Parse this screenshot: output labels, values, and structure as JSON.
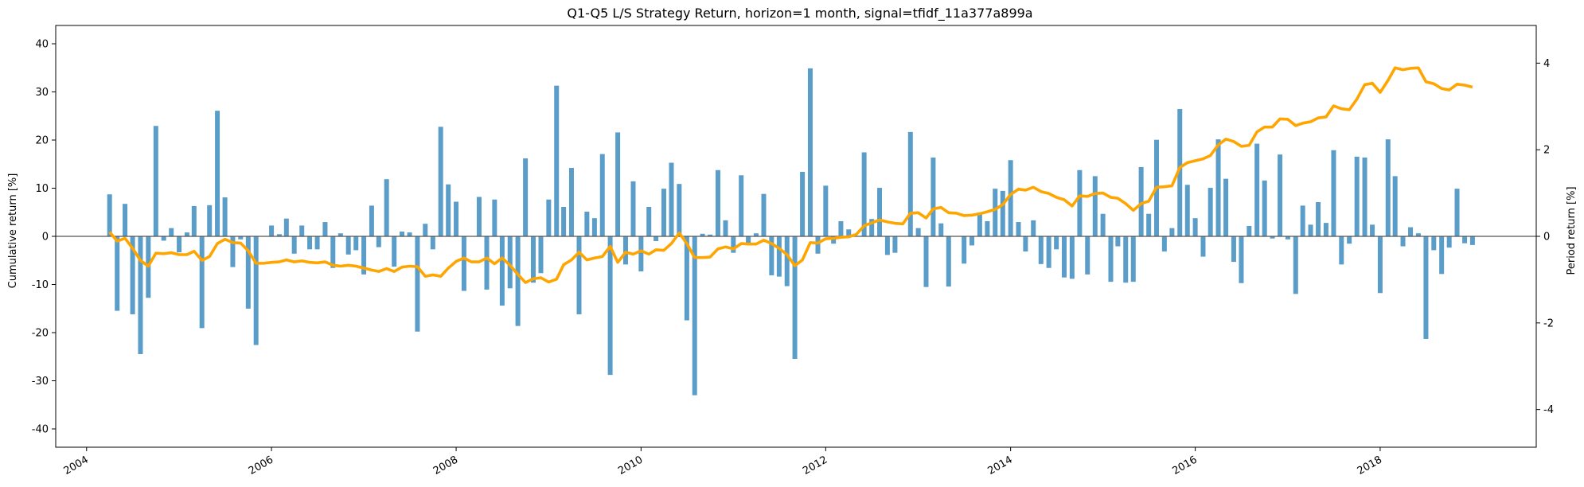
{
  "chart_data": {
    "type": "bar",
    "title": "Q1-Q5 L/S Strategy Return, horizon=1 month, signal=tfidf_11a377a899a",
    "ylabel_left": "Cumulative return [%]",
    "ylabel_right": "Period return [%]",
    "xlim": [
      "2003-09-01",
      "2019-09-10"
    ],
    "ylim_left": [
      -43.8,
      43.8
    ],
    "ylim_right": [
      -4.87,
      4.87
    ],
    "x_ticks": [
      "2004",
      "2006",
      "2008",
      "2010",
      "2012",
      "2014",
      "2016",
      "2018"
    ],
    "yticks_left": [
      -40,
      -30,
      -20,
      -10,
      0,
      10,
      20,
      30,
      40
    ],
    "yticks_right": [
      -4,
      -2,
      0,
      2,
      4
    ],
    "zero_line": true,
    "grid": false,
    "colors": {
      "bars": "#5b9dc9",
      "line": "#ffa500",
      "zero": "#555555"
    },
    "series": [
      {
        "type": "bar",
        "axis": "right",
        "start": "2004-04",
        "frequency": "monthly",
        "values": [
          0.97,
          -1.72,
          0.75,
          -1.8,
          -2.72,
          -1.42,
          2.55,
          -0.1,
          0.19,
          -0.37,
          0.09,
          0.7,
          -2.12,
          0.72,
          2.9,
          0.9,
          -0.71,
          -0.07,
          -1.67,
          -2.51,
          0.0,
          0.25,
          0.05,
          0.41,
          -0.4,
          0.25,
          -0.3,
          -0.3,
          0.33,
          -0.73,
          0.07,
          -0.42,
          -0.32,
          -0.88,
          0.71,
          -0.25,
          1.32,
          -0.7,
          0.11,
          0.09,
          -2.2,
          0.29,
          -0.3,
          2.53,
          1.2,
          0.8,
          -1.26,
          0.0,
          0.91,
          -1.23,
          0.85,
          -1.6,
          -1.2,
          -2.07,
          1.8,
          -1.07,
          -0.85,
          0.85,
          3.48,
          0.68,
          1.58,
          -1.8,
          0.57,
          0.42,
          1.9,
          -3.2,
          2.4,
          -0.65,
          1.27,
          -0.81,
          0.68,
          -0.11,
          1.1,
          1.7,
          1.21,
          -1.94,
          -3.67,
          0.06,
          0.04,
          1.53,
          0.37,
          -0.38,
          1.41,
          -0.15,
          0.07,
          0.98,
          -0.9,
          -0.93,
          -1.15,
          -2.83,
          1.49,
          3.88,
          -0.4,
          1.17,
          -0.17,
          0.35,
          0.16,
          0.0,
          1.94,
          0.4,
          1.12,
          -0.43,
          -0.38,
          0.0,
          2.41,
          0.19,
          -1.17,
          1.82,
          0.3,
          -1.16,
          0.0,
          -0.63,
          -0.21,
          0.55,
          0.35,
          1.1,
          1.05,
          1.76,
          0.33,
          -0.35,
          0.37,
          -0.64,
          -0.73,
          -0.3,
          -0.95,
          -0.98,
          1.53,
          -0.88,
          1.39,
          0.52,
          -1.05,
          -0.23,
          -1.07,
          -1.05,
          1.6,
          0.52,
          2.23,
          -0.35,
          0.19,
          2.94,
          1.19,
          0.42,
          -0.47,
          1.12,
          2.24,
          1.33,
          -0.59,
          -1.08,
          0.24,
          2.14,
          1.29,
          -0.05,
          1.89,
          -0.07,
          -1.33,
          0.71,
          0.27,
          0.79,
          0.31,
          1.99,
          -0.65,
          -0.17,
          1.84,
          1.82,
          0.27,
          -1.31,
          2.24,
          1.39,
          -0.23,
          0.21,
          0.07,
          -2.37,
          -0.32,
          -0.87,
          -0.26,
          1.1,
          -0.16,
          -0.2
        ]
      },
      {
        "type": "line",
        "axis": "left",
        "start": "2004-04",
        "frequency": "monthly",
        "values": [
          0.9,
          -1.0,
          -0.4,
          -2.5,
          -5.0,
          -6.2,
          -3.5,
          -3.6,
          -3.4,
          -3.8,
          -3.8,
          -3.1,
          -5.0,
          -4.2,
          -1.5,
          -0.6,
          -1.3,
          -1.4,
          -3.0,
          -5.6,
          -5.6,
          -5.4,
          -5.3,
          -4.9,
          -5.3,
          -5.1,
          -5.4,
          -5.5,
          -5.3,
          -6.0,
          -6.2,
          -6.0,
          -6.2,
          -6.6,
          -7.0,
          -7.3,
          -6.7,
          -7.3,
          -6.4,
          -6.2,
          -6.3,
          -8.3,
          -8.0,
          -8.3,
          -6.6,
          -5.2,
          -4.5,
          -5.3,
          -5.3,
          -4.5,
          -5.7,
          -4.5,
          -6.0,
          -7.9,
          -9.6,
          -8.8,
          -8.6,
          -9.5,
          -8.9,
          -5.9,
          -4.9,
          -3.3,
          -4.9,
          -4.5,
          -4.2,
          -2.1,
          -5.4,
          -3.3,
          -3.7,
          -3.0,
          -3.7,
          -2.8,
          -2.9,
          -1.5,
          0.7,
          -1.5,
          -4.4,
          -4.4,
          -4.3,
          -2.6,
          -2.2,
          -2.6,
          -1.5,
          -1.6,
          -1.6,
          -0.8,
          -1.5,
          -2.5,
          -3.8,
          -6.1,
          -4.9,
          -1.3,
          -1.4,
          -0.5,
          -0.4,
          -0.2,
          -0.1,
          0.4,
          2.2,
          2.8,
          3.4,
          3.0,
          2.7,
          2.6,
          4.8,
          4.9,
          3.8,
          5.7,
          6.0,
          4.9,
          4.8,
          4.3,
          4.4,
          4.7,
          5.1,
          5.6,
          6.6,
          8.7,
          9.8,
          9.6,
          10.2,
          9.3,
          8.9,
          8.1,
          7.6,
          6.3,
          8.4,
          8.3,
          8.9,
          9.0,
          8.1,
          7.9,
          6.8,
          5.4,
          6.8,
          7.3,
          10.2,
          10.3,
          10.5,
          14.3,
          15.3,
          15.7,
          16.1,
          16.8,
          19.0,
          20.2,
          19.7,
          18.7,
          18.9,
          21.7,
          22.7,
          22.7,
          24.4,
          24.3,
          23.0,
          23.5,
          23.8,
          24.6,
          24.8,
          27.1,
          26.5,
          26.3,
          28.5,
          31.5,
          31.8,
          29.9,
          32.4,
          35.0,
          34.6,
          34.9,
          35.0,
          32.1,
          31.7,
          30.7,
          30.4,
          31.6,
          31.4,
          31.0
        ]
      }
    ]
  }
}
